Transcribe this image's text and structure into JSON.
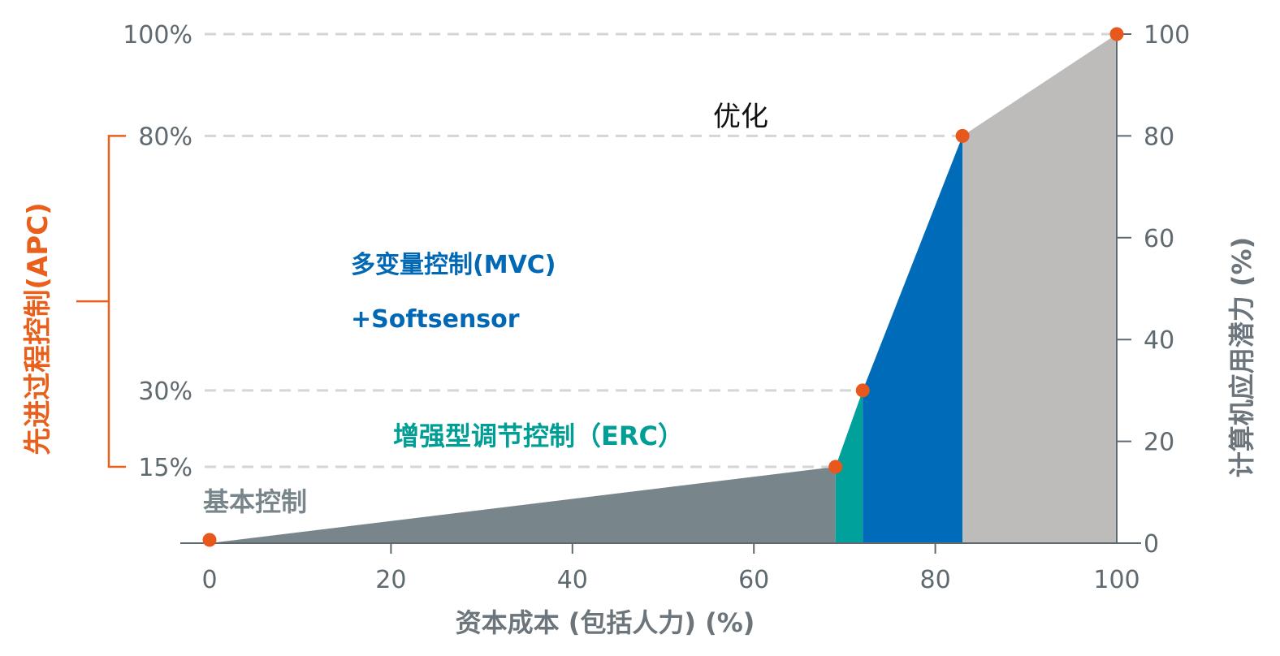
{
  "chart_data": {
    "type": "area",
    "xlabel": "资本成本 (包括人力) (%)",
    "ylabel_right": "计算机应用潜力 (%)",
    "xlim": [
      0,
      100
    ],
    "ylim": [
      0,
      100
    ],
    "x_ticks": [
      "0",
      "20",
      "40",
      "60",
      "80",
      "100"
    ],
    "y_ticks_right": [
      "0",
      "20",
      "40",
      "60",
      "80",
      "100"
    ],
    "y_levels_left": [
      {
        "label": "15%",
        "value": 15
      },
      {
        "label": "30%",
        "value": 30
      },
      {
        "label": "80%",
        "value": 80
      },
      {
        "label": "100%",
        "value": 100
      }
    ],
    "points": [
      {
        "x": 0,
        "y": 0
      },
      {
        "x": 69,
        "y": 15
      },
      {
        "x": 72,
        "y": 30
      },
      {
        "x": 83,
        "y": 80
      },
      {
        "x": 100,
        "y": 100
      }
    ],
    "segments": [
      {
        "name": "基本控制",
        "x_from": 0,
        "x_to": 69,
        "color": "#78868b",
        "label_color": "#78868b"
      },
      {
        "name": "增强型调节控制（ERC）",
        "x_from": 69,
        "x_to": 72,
        "color": "#00a19a",
        "label_color": "#009e94"
      },
      {
        "name": "多变量控制(MVC)",
        "name_line2": "+Softsensor",
        "x_from": 72,
        "x_to": 83,
        "color": "#006bb8",
        "label_color": "#0068b4"
      },
      {
        "name": "优化",
        "x_from": 83,
        "x_to": 100,
        "color": "#bdbcbb",
        "label_color": "#111111"
      }
    ],
    "bracket": {
      "label": "先进过程控制(APC)",
      "from": 15,
      "to": 80,
      "color": "#e8601c"
    },
    "marker_color": "#e8581c",
    "grid": "dashed horizontal guides at left levels"
  }
}
